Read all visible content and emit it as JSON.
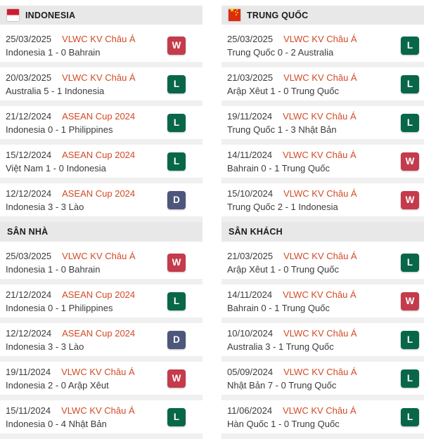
{
  "colors": {
    "competition_link": "#d24a26",
    "text": "#3b3b3b",
    "header_band": "#e8e8e8",
    "row_divider": "#f0f0f0",
    "badge_win": "#c43b4b",
    "badge_loss": "#086749",
    "badge_draw": "#4d567b",
    "indonesia_flag_red": "#d01c2f",
    "china_flag_red": "#dd2c10",
    "china_flag_star": "#ffde00"
  },
  "badge_colors": {
    "W": "#c43b4b",
    "L": "#086749",
    "D": "#4d567b"
  },
  "columns": [
    {
      "team": "INDONESIA",
      "flag": "indonesia-flag",
      "sections": [
        {
          "title": "",
          "matches": [
            {
              "date": "25/03/2025",
              "competition": "VLWC KV Châu Á",
              "result": "Indonesia 1 - 0 Bahrain",
              "outcome": "W"
            },
            {
              "date": "20/03/2025",
              "competition": "VLWC KV Châu Á",
              "result": "Australia 5 - 1 Indonesia",
              "outcome": "L"
            },
            {
              "date": "21/12/2024",
              "competition": "ASEAN Cup 2024",
              "result": "Indonesia 0 - 1 Philippines",
              "outcome": "L"
            },
            {
              "date": "15/12/2024",
              "competition": "ASEAN Cup 2024",
              "result": "Việt Nam 1 - 0 Indonesia",
              "outcome": "L"
            },
            {
              "date": "12/12/2024",
              "competition": "ASEAN Cup 2024",
              "result": "Indonesia 3 - 3 Lào",
              "outcome": "D"
            }
          ]
        },
        {
          "title": "SÂN NHÀ",
          "matches": [
            {
              "date": "25/03/2025",
              "competition": "VLWC KV Châu Á",
              "result": "Indonesia 1 - 0 Bahrain",
              "outcome": "W"
            },
            {
              "date": "21/12/2024",
              "competition": "ASEAN Cup 2024",
              "result": "Indonesia 0 - 1 Philippines",
              "outcome": "L"
            },
            {
              "date": "12/12/2024",
              "competition": "ASEAN Cup 2024",
              "result": "Indonesia 3 - 3 Lào",
              "outcome": "D"
            },
            {
              "date": "19/11/2024",
              "competition": "VLWC KV Châu Á",
              "result": "Indonesia 2 - 0 Arập Xêut",
              "outcome": "W"
            },
            {
              "date": "15/11/2024",
              "competition": "VLWC KV Châu Á",
              "result": "Indonesia 0 - 4 Nhật Bản",
              "outcome": "L"
            }
          ]
        }
      ]
    },
    {
      "team": "TRUNG QUỐC",
      "flag": "china-flag",
      "sections": [
        {
          "title": "",
          "matches": [
            {
              "date": "25/03/2025",
              "competition": "VLWC KV Châu Á",
              "result": "Trung Quốc 0 - 2 Australia",
              "outcome": "L"
            },
            {
              "date": "21/03/2025",
              "competition": "VLWC KV Châu Á",
              "result": "Arập Xêut 1 - 0 Trung Quốc",
              "outcome": "L"
            },
            {
              "date": "19/11/2024",
              "competition": "VLWC KV Châu Á",
              "result": "Trung Quốc 1 - 3 Nhật Bản",
              "outcome": "L"
            },
            {
              "date": "14/11/2024",
              "competition": "VLWC KV Châu Á",
              "result": "Bahrain 0 - 1 Trung Quốc",
              "outcome": "W"
            },
            {
              "date": "15/10/2024",
              "competition": "VLWC KV Châu Á",
              "result": "Trung Quốc 2 - 1 Indonesia",
              "outcome": "W"
            }
          ]
        },
        {
          "title": "SÂN KHÁCH",
          "matches": [
            {
              "date": "21/03/2025",
              "competition": "VLWC KV Châu Á",
              "result": "Arập Xêut 1 - 0 Trung Quốc",
              "outcome": "L"
            },
            {
              "date": "14/11/2024",
              "competition": "VLWC KV Châu Á",
              "result": "Bahrain 0 - 1 Trung Quốc",
              "outcome": "W"
            },
            {
              "date": "10/10/2024",
              "competition": "VLWC KV Châu Á",
              "result": "Australia 3 - 1 Trung Quốc",
              "outcome": "L"
            },
            {
              "date": "05/09/2024",
              "competition": "VLWC KV Châu Á",
              "result": "Nhật Bản 7 - 0 Trung Quốc",
              "outcome": "L"
            },
            {
              "date": "11/06/2024",
              "competition": "VLWC KV Châu Á",
              "result": "Hàn Quốc 1 - 0 Trung Quốc",
              "outcome": "L"
            }
          ]
        }
      ]
    }
  ]
}
